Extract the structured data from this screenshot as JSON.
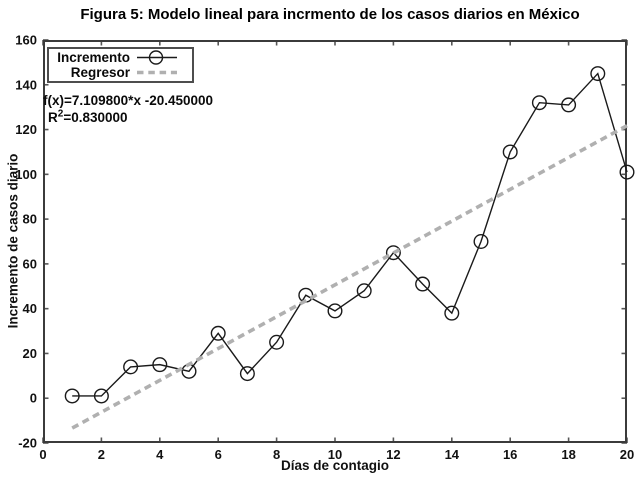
{
  "figure": {
    "title": "Figura 5: Modelo lineal para incrmento de los casos diarios en México"
  },
  "chart_data": {
    "type": "line",
    "title": "Figura 5: Modelo lineal para incrmento de los casos diarios en México",
    "xlabel": "Días de contagio",
    "ylabel": "Incremento de casos diario",
    "xlim": [
      0,
      20
    ],
    "ylim": [
      -20,
      160
    ],
    "xticks": [
      0,
      2,
      4,
      6,
      8,
      10,
      12,
      14,
      16,
      18,
      20
    ],
    "yticks": [
      -20,
      0,
      20,
      40,
      60,
      80,
      100,
      120,
      140,
      160
    ],
    "grid": false,
    "legend_position": "top-left",
    "series": [
      {
        "name": "Incremento",
        "style": "solid-line-open-circle-markers",
        "color": "#1a1a1a",
        "x": [
          1,
          2,
          3,
          4,
          5,
          6,
          7,
          8,
          9,
          10,
          11,
          12,
          13,
          14,
          15,
          16,
          17,
          18,
          19,
          20
        ],
        "values": [
          1,
          1,
          14,
          15,
          12,
          29,
          11,
          25,
          46,
          39,
          48,
          65,
          51,
          38,
          70,
          110,
          132,
          131,
          145,
          101
        ]
      },
      {
        "name": "Regresor",
        "style": "dashed-line",
        "color": "#b0b0b0",
        "slope": 7.1098,
        "intercept": -20.45,
        "x_start": 1,
        "x_end": 20
      }
    ],
    "annotation": {
      "line1": "f(x)=7.109800*x -20.450000",
      "r_base": "R",
      "r_sup": "2",
      "r_rest": "=0.830000"
    }
  }
}
